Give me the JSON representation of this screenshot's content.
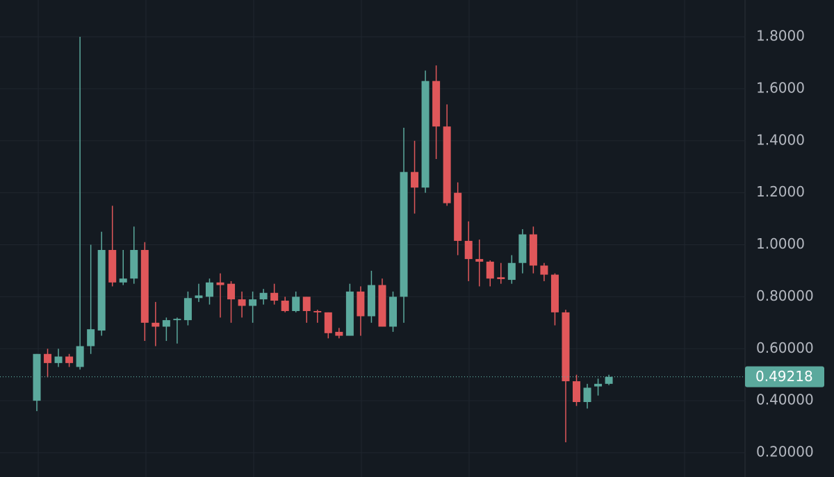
{
  "chart_data": {
    "type": "candlestick",
    "up_color": "#5ba99d",
    "down_color": "#e0575a",
    "open": [
      0.4,
      0.58,
      0.545,
      0.57,
      0.53,
      0.61,
      0.67,
      0.98,
      0.855,
      0.87,
      0.98,
      0.7,
      0.685,
      0.71,
      0.71,
      0.795,
      0.8,
      0.855,
      0.85,
      0.79,
      0.765,
      0.79,
      0.815,
      0.785,
      0.745,
      0.8,
      0.745,
      0.74,
      0.665,
      0.65,
      0.82,
      0.725,
      0.845,
      0.685,
      0.8,
      1.28,
      1.22,
      1.63,
      1.455,
      1.2,
      1.015,
      0.945,
      0.935,
      0.875,
      0.865,
      0.93,
      1.04,
      0.92,
      0.885,
      0.74,
      0.475,
      0.395,
      0.455,
      0.465
    ],
    "high": [
      0.58,
      0.6,
      0.6,
      0.58,
      1.8,
      1.0,
      1.05,
      1.15,
      0.98,
      1.07,
      1.01,
      0.78,
      0.72,
      0.72,
      0.82,
      0.85,
      0.87,
      0.89,
      0.86,
      0.82,
      0.82,
      0.83,
      0.85,
      0.8,
      0.82,
      0.8,
      0.75,
      0.74,
      0.68,
      0.85,
      0.84,
      0.9,
      0.87,
      0.82,
      1.45,
      1.4,
      1.67,
      1.69,
      1.54,
      1.24,
      1.09,
      1.02,
      0.94,
      0.93,
      0.96,
      1.06,
      1.07,
      0.93,
      0.89,
      0.75,
      0.5,
      0.465,
      0.485,
      0.5
    ],
    "low": [
      0.36,
      0.49,
      0.53,
      0.53,
      0.52,
      0.58,
      0.65,
      0.84,
      0.845,
      0.85,
      0.63,
      0.61,
      0.63,
      0.62,
      0.69,
      0.78,
      0.77,
      0.72,
      0.7,
      0.72,
      0.7,
      0.77,
      0.77,
      0.74,
      0.74,
      0.7,
      0.7,
      0.64,
      0.64,
      0.65,
      0.65,
      0.7,
      0.685,
      0.665,
      0.7,
      1.12,
      1.2,
      1.33,
      1.15,
      0.96,
      0.86,
      0.84,
      0.84,
      0.85,
      0.85,
      0.89,
      0.89,
      0.86,
      0.69,
      0.24,
      0.38,
      0.37,
      0.42,
      0.46
    ],
    "close": [
      0.58,
      0.545,
      0.57,
      0.545,
      0.61,
      0.675,
      0.98,
      0.855,
      0.87,
      0.98,
      0.7,
      0.685,
      0.71,
      0.715,
      0.795,
      0.805,
      0.855,
      0.845,
      0.79,
      0.765,
      0.79,
      0.815,
      0.785,
      0.745,
      0.8,
      0.745,
      0.74,
      0.66,
      0.65,
      0.82,
      0.725,
      0.845,
      0.685,
      0.8,
      1.28,
      1.22,
      1.63,
      1.455,
      1.16,
      1.015,
      0.945,
      0.935,
      0.87,
      0.868,
      0.93,
      1.04,
      0.92,
      0.885,
      0.74,
      0.475,
      0.395,
      0.45,
      0.465,
      0.492
    ],
    "last_price": 0.49218,
    "ylim": [
      0.1066,
      1.9416
    ],
    "yticks": [
      {
        "value": 1.8,
        "label": "1.8000"
      },
      {
        "value": 1.6,
        "label": "1.6000"
      },
      {
        "value": 1.4,
        "label": "1.4000"
      },
      {
        "value": 1.2,
        "label": "1.2000"
      },
      {
        "value": 1.0,
        "label": "1.0000"
      },
      {
        "value": 0.8,
        "label": "0.80000"
      },
      {
        "value": 0.6,
        "label": "0.60000"
      },
      {
        "value": 0.4,
        "label": "0.40000"
      },
      {
        "value": 0.2,
        "label": "0.20000"
      }
    ],
    "grid": true
  }
}
